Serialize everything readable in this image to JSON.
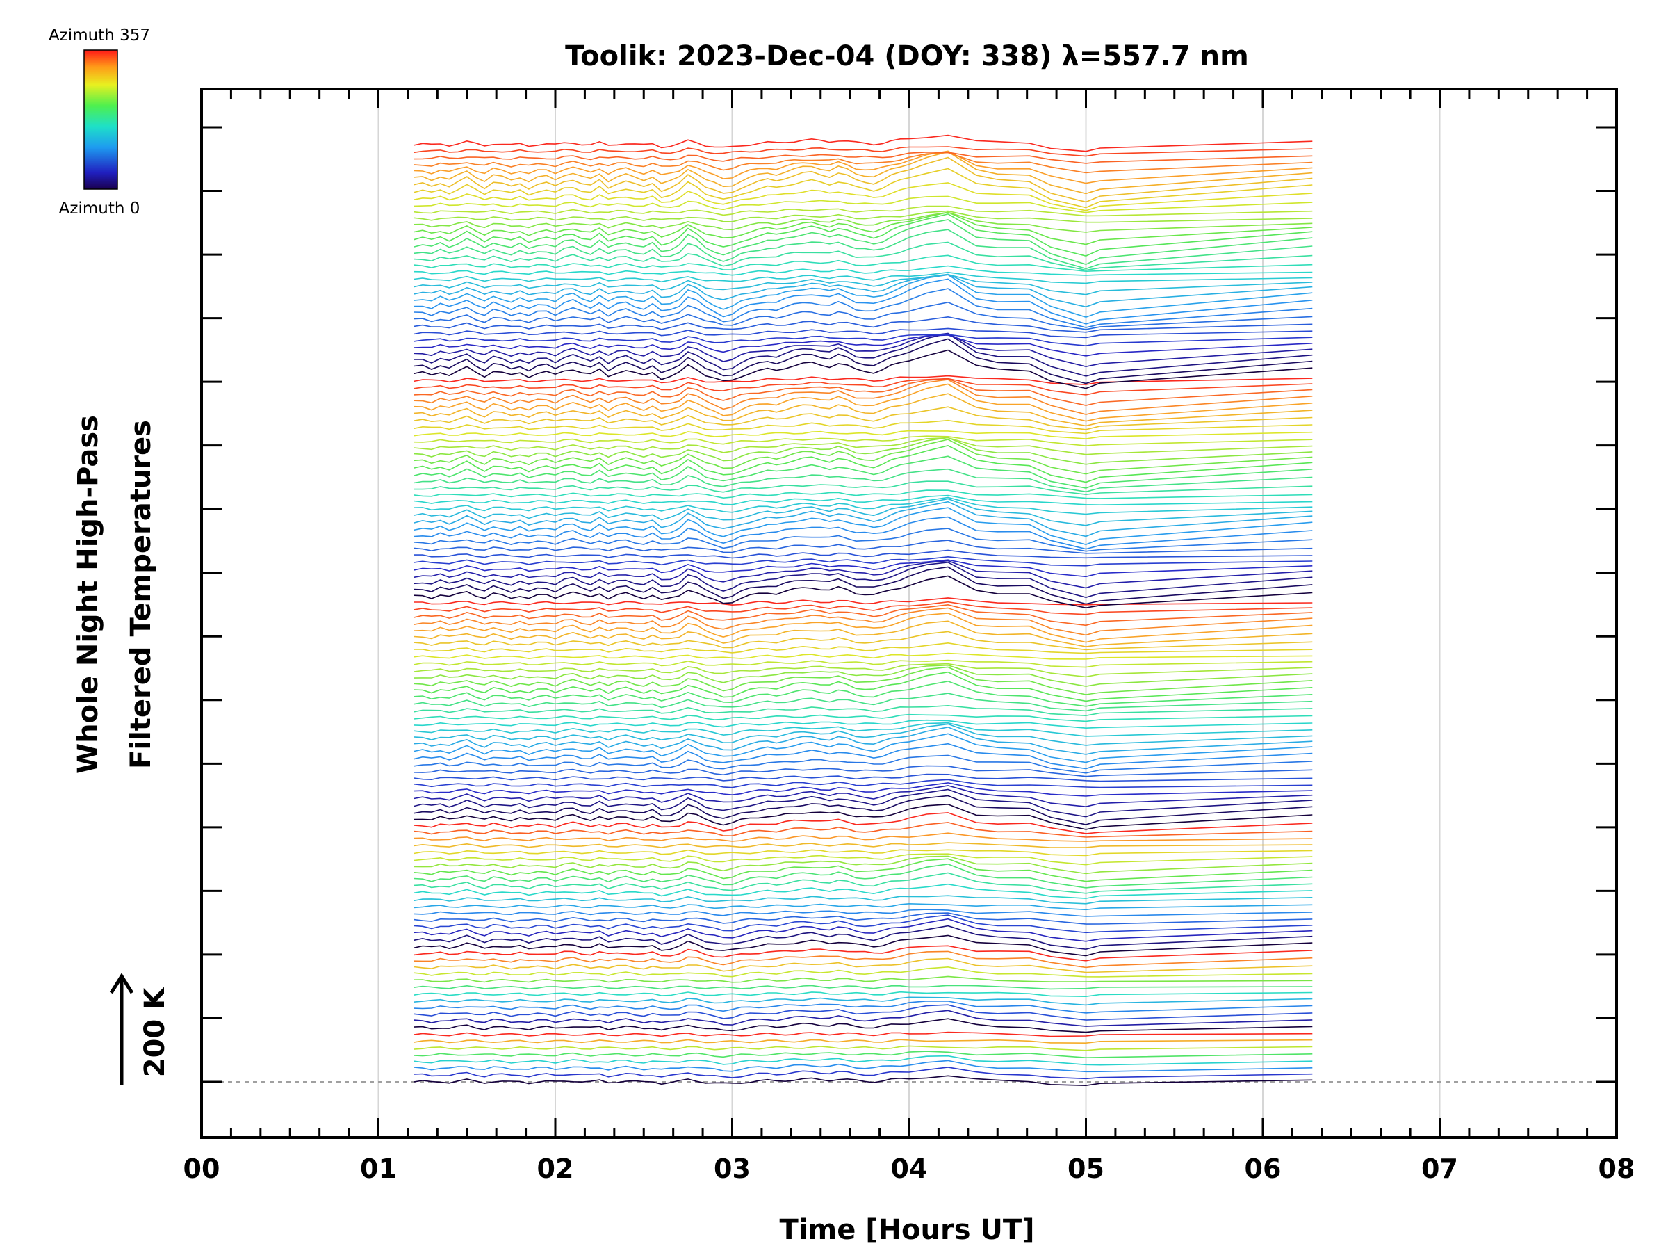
{
  "chart_data": {
    "type": "line",
    "title": "Toolik: 2023-Dec-04 (DOY: 338) λ=557.7 nm",
    "xlabel": "Time [Hours UT]",
    "ylabel_line1": "Whole Night High-Pass",
    "ylabel_line2": "Filtered Temperatures",
    "xlim": [
      0,
      8
    ],
    "x_tick_labels": [
      "00",
      "01",
      "02",
      "03",
      "04",
      "05",
      "06",
      "07",
      "08"
    ],
    "x_minor_ticks_per_hour": 6,
    "y_major_tick_count": 16,
    "x_gridlines": true,
    "scale_bar": {
      "label": "200 K",
      "kelvin": 200
    },
    "colorbar": {
      "top_label": "Azimuth 357",
      "bottom_label": "Azimuth 0",
      "colormap": "rainbow",
      "range": [
        0,
        357
      ]
    },
    "series_groups": [
      {
        "traces": 8,
        "amplitude": 0.22
      },
      {
        "traces": 12,
        "amplitude": 0.3
      },
      {
        "traces": 19,
        "amplitude": 0.45
      },
      {
        "traces": 33,
        "amplitude": 0.55
      },
      {
        "traces": 33,
        "amplitude": 0.7
      },
      {
        "traces": 35,
        "amplitude": 0.85
      }
    ],
    "time_start_hours": 1.2,
    "time_end_hours": 6.28,
    "sample_times_hours": [
      1.2,
      1.25,
      1.3,
      1.35,
      1.4,
      1.45,
      1.5,
      1.55,
      1.6,
      1.65,
      1.7,
      1.75,
      1.8,
      1.85,
      1.9,
      1.95,
      2.0,
      2.05,
      2.1,
      2.15,
      2.2,
      2.25,
      2.3,
      2.35,
      2.4,
      2.45,
      2.5,
      2.55,
      2.6,
      2.65,
      2.7,
      2.75,
      2.8,
      2.85,
      2.9,
      2.95,
      3.0,
      3.05,
      3.1,
      3.15,
      3.2,
      3.25,
      3.3,
      3.35,
      3.4,
      3.45,
      3.5,
      3.55,
      3.6,
      3.65,
      3.7,
      3.75,
      3.8,
      3.85,
      3.9,
      3.95,
      4.0,
      4.1,
      4.22,
      4.38,
      4.5,
      4.68,
      4.8,
      5.0,
      5.08,
      6.28
    ],
    "base_profile_kelvin": [
      0,
      5,
      -6,
      10,
      -4,
      12,
      30,
      8,
      -10,
      14,
      5,
      -8,
      6,
      -12,
      4,
      8,
      -6,
      16,
      24,
      6,
      -4,
      20,
      -10,
      8,
      16,
      2,
      -8,
      10,
      -22,
      -14,
      4,
      42,
      24,
      -6,
      -22,
      -38,
      -30,
      -10,
      4,
      14,
      22,
      18,
      30,
      40,
      48,
      52,
      44,
      36,
      50,
      38,
      20,
      14,
      8,
      20,
      38,
      52,
      66,
      92,
      112,
      36,
      22,
      18,
      -30,
      -72,
      -50,
      28
    ]
  }
}
